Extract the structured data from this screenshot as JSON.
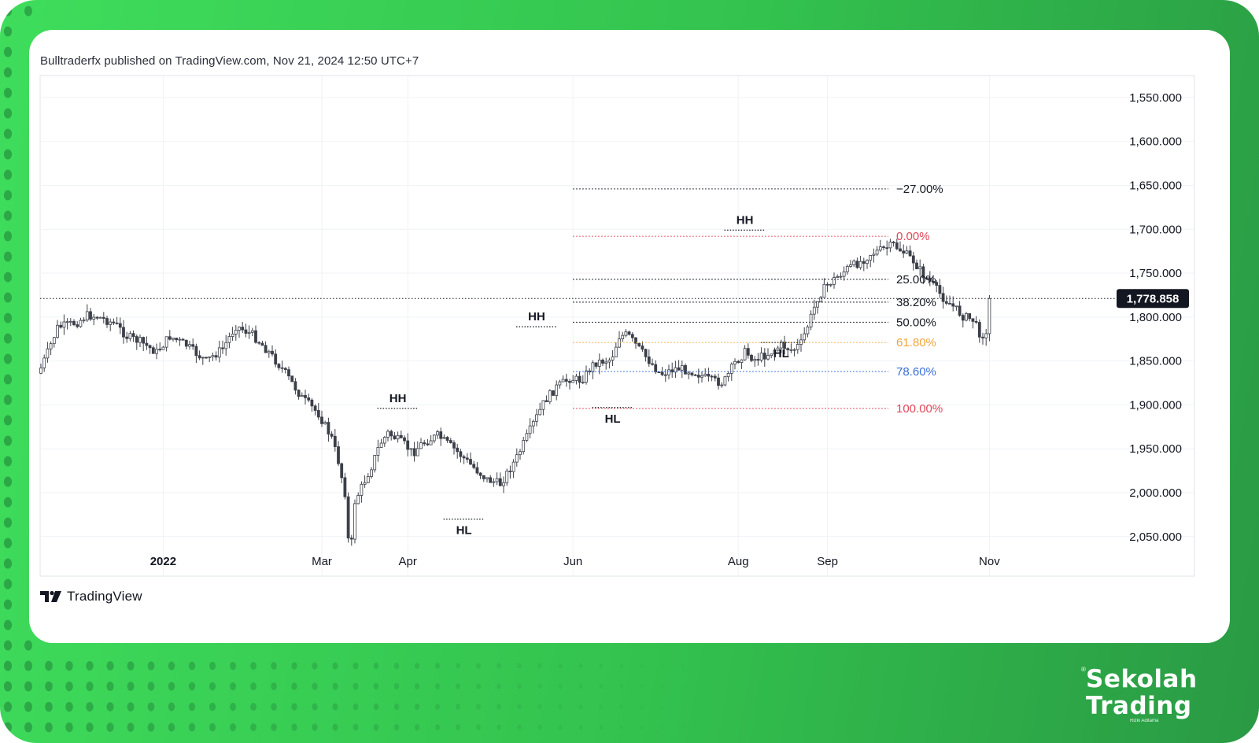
{
  "header": {
    "published_text": "Bulltraderfx published on TradingView.com, Nov 21, 2024 12:50 UTC+7"
  },
  "footer": {
    "tradingview_label": "TradingView",
    "brand_line1": "Sekolah",
    "brand_line2": "Trading",
    "brand_sub": "Rizki Aditama",
    "brand_mark": "®"
  },
  "colors": {
    "candle": "#3b3f48",
    "fib_neutral": "#131722",
    "fib_zero": "#e0475a",
    "fib_618": "#f2a53b",
    "fib_786": "#3a6fd8",
    "fib_100": "#e0475a",
    "price_badge": "#131722",
    "grid": "#f0f2f5",
    "frame_green": "#37c853"
  },
  "chart_data": {
    "type": "candlestick",
    "title": "",
    "y_axis": {
      "inverted": true,
      "range": [
        1525,
        2095
      ],
      "ticks": [
        1550,
        1600,
        1650,
        1700,
        1750,
        1800,
        1850,
        1900,
        1950,
        2000,
        2050
      ],
      "tick_labels": [
        "1,550.000",
        "1,600.000",
        "1,650.000",
        "1,700.000",
        "1,750.000",
        "1,800.000",
        "1,850.000",
        "1,900.000",
        "1,950.000",
        "2,000.000",
        "2,050.000"
      ]
    },
    "x_axis": {
      "labels": [
        "2022",
        "Mar",
        "Apr",
        "Jun",
        "Aug",
        "Sep",
        "Nov"
      ]
    },
    "last_price": 1778.858,
    "last_price_label": "1,778.858",
    "fibonacci": [
      {
        "label": "−27.00%",
        "price": 1654,
        "color_key": "fib_neutral"
      },
      {
        "label": "0.00%",
        "price": 1708,
        "color_key": "fib_zero"
      },
      {
        "label": "25.00%",
        "price": 1757,
        "color_key": "fib_neutral"
      },
      {
        "label": "38.20%",
        "price": 1783,
        "color_key": "fib_neutral"
      },
      {
        "label": "50.00%",
        "price": 1806,
        "color_key": "fib_neutral"
      },
      {
        "label": "61.80%",
        "price": 1829,
        "color_key": "fib_618"
      },
      {
        "label": "78.60%",
        "price": 1862,
        "color_key": "fib_786"
      },
      {
        "label": "100.00%",
        "price": 1904,
        "color_key": "fib_100"
      }
    ],
    "annotations": [
      {
        "label": "HH",
        "price": 1904,
        "pos": "above"
      },
      {
        "label": "HL",
        "price": 2030,
        "pos": "below"
      },
      {
        "label": "HH",
        "price": 1811,
        "pos": "above"
      },
      {
        "label": "HL",
        "price": 1903,
        "pos": "below"
      },
      {
        "label": "HH",
        "price": 1701,
        "pos": "above"
      },
      {
        "label": "HL",
        "price": 1829,
        "pos": "below"
      }
    ],
    "path": [
      [
        0,
        1858
      ],
      [
        5,
        1836
      ],
      [
        10,
        1812
      ],
      [
        22,
        1806
      ],
      [
        28,
        1798
      ],
      [
        35,
        1800
      ],
      [
        45,
        1808
      ],
      [
        52,
        1822
      ],
      [
        60,
        1828
      ],
      [
        70,
        1840
      ],
      [
        78,
        1822
      ],
      [
        88,
        1832
      ],
      [
        95,
        1843
      ],
      [
        100,
        1850
      ],
      [
        110,
        1836
      ],
      [
        118,
        1810
      ],
      [
        128,
        1820
      ],
      [
        138,
        1840
      ],
      [
        148,
        1864
      ],
      [
        158,
        1892
      ],
      [
        168,
        1910
      ],
      [
        176,
        1938
      ],
      [
        180,
        1964
      ],
      [
        184,
        2000
      ],
      [
        187,
        2080
      ],
      [
        190,
        2010
      ],
      [
        195,
        1990
      ],
      [
        200,
        1970
      ],
      [
        205,
        1945
      ],
      [
        210,
        1932
      ],
      [
        220,
        1945
      ],
      [
        225,
        1955
      ],
      [
        230,
        1945
      ],
      [
        240,
        1935
      ],
      [
        250,
        1950
      ],
      [
        260,
        1968
      ],
      [
        270,
        1985
      ],
      [
        278,
        1990
      ],
      [
        288,
        1960
      ],
      [
        297,
        1925
      ],
      [
        305,
        1895
      ],
      [
        312,
        1880
      ],
      [
        320,
        1870
      ],
      [
        327,
        1872
      ],
      [
        335,
        1852
      ],
      [
        345,
        1848
      ],
      [
        350,
        1822
      ],
      [
        355,
        1820
      ],
      [
        365,
        1843
      ],
      [
        375,
        1865
      ],
      [
        385,
        1858
      ],
      [
        395,
        1862
      ],
      [
        405,
        1872
      ],
      [
        413,
        1875
      ],
      [
        420,
        1852
      ],
      [
        426,
        1840
      ],
      [
        432,
        1848
      ],
      [
        440,
        1842
      ],
      [
        448,
        1832
      ],
      [
        455,
        1838
      ],
      [
        460,
        1830
      ],
      [
        466,
        1800
      ],
      [
        470,
        1778
      ],
      [
        475,
        1765
      ],
      [
        480,
        1757
      ],
      [
        488,
        1745
      ],
      [
        496,
        1737
      ],
      [
        502,
        1728
      ],
      [
        508,
        1724
      ],
      [
        516,
        1718
      ],
      [
        522,
        1726
      ],
      [
        528,
        1736
      ],
      [
        534,
        1752
      ],
      [
        540,
        1764
      ],
      [
        546,
        1778
      ],
      [
        552,
        1788
      ],
      [
        558,
        1799
      ],
      [
        564,
        1803
      ],
      [
        568,
        1818
      ],
      [
        574,
        1823
      ]
    ]
  }
}
